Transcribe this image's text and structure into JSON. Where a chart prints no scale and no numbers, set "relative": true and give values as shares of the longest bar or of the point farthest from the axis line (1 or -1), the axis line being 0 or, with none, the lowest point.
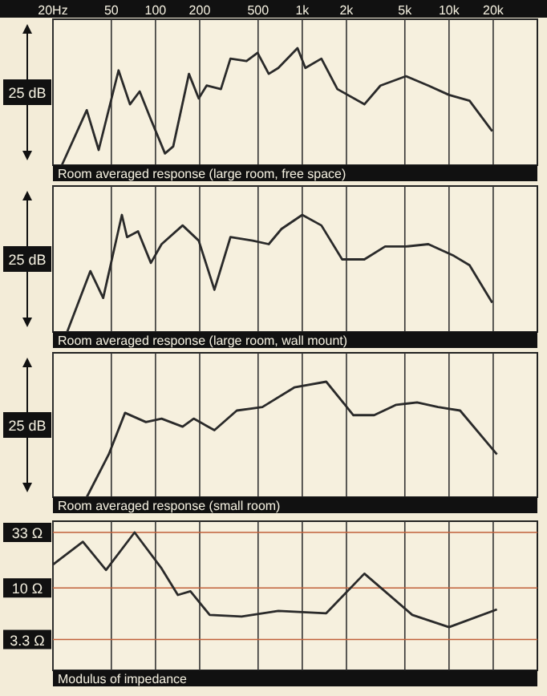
{
  "chart_data": [
    {
      "type": "line",
      "title": "Room averaged response (large room, free space)",
      "annotations": [
        "25 dB"
      ],
      "relative": true,
      "log": "x",
      "xlim": [
        20,
        40000
      ],
      "xticks": [
        {
          "value": 20,
          "label": "20Hz"
        },
        50,
        100,
        200,
        500,
        {
          "value": 1000,
          "label": "1k"
        },
        {
          "value": 2000,
          "label": "2k"
        },
        {
          "value": 5000,
          "label": "5k"
        },
        {
          "value": 10000,
          "label": "10k"
        },
        {
          "value": 20000,
          "label": "20k"
        }
      ],
      "tick_labels": "x",
      "grid": "x",
      "series": [
        {
          "color": "#2a2a2a",
          "x": [
            23,
            34,
            41,
            56,
            67,
            78,
            93,
            116,
            132,
            169,
            197,
            223,
            279,
            324,
            417,
            496,
            591,
            687,
            928,
            1050,
            1350,
            1735,
            2650,
            3410,
            5090,
            7230,
            10000,
            13800,
            19700
          ],
          "values": [
            0,
            0.47,
            0.13,
            0.81,
            0.52,
            0.63,
            0.39,
            0.1,
            0.16,
            0.78,
            0.57,
            0.68,
            0.65,
            0.91,
            0.89,
            0.96,
            0.78,
            0.83,
            1,
            0.83,
            0.91,
            0.65,
            0.52,
            0.68,
            0.76,
            0.68,
            0.6,
            0.55,
            0.29
          ]
        }
      ]
    },
    {
      "type": "line",
      "title": "Room averaged response (large room, wall mount)",
      "annotations": [
        "25 dB"
      ],
      "relative": true,
      "log": "x",
      "xlim": [
        20,
        40000
      ],
      "tick_labels": false,
      "grid": "x",
      "series": [
        {
          "color": "#2a2a2a",
          "x": [
            25,
            36,
            44,
            59,
            64,
            76,
            93,
            110,
            153,
            197,
            252,
            324,
            460,
            591,
            722,
            1000,
            1350,
            1870,
            2650,
            3670,
            5090,
            7230,
            10800,
            13800,
            19700
          ],
          "values": [
            0,
            0.52,
            0.29,
            1,
            0.81,
            0.86,
            0.59,
            0.75,
            0.91,
            0.78,
            0.36,
            0.81,
            0.78,
            0.75,
            0.88,
            1,
            0.91,
            0.62,
            0.62,
            0.73,
            0.73,
            0.75,
            0.65,
            0.57,
            0.25
          ]
        }
      ]
    },
    {
      "type": "line",
      "title": "Room averaged response (small room)",
      "annotations": [
        "25 dB"
      ],
      "relative": true,
      "log": "x",
      "xlim": [
        20,
        40000
      ],
      "tick_labels": false,
      "grid": "x",
      "series": [
        {
          "color": "#2a2a2a",
          "x": [
            34,
            48,
            62,
            86,
            110,
            153,
            182,
            252,
            358,
            535,
            882,
            1456,
            2230,
            3090,
            4370,
            6060,
            8420,
            11900,
            21200
          ],
          "values": [
            0,
            0.37,
            0.73,
            0.65,
            0.68,
            0.61,
            0.68,
            0.58,
            0.75,
            0.78,
            0.95,
            1,
            0.71,
            0.71,
            0.8,
            0.82,
            0.78,
            0.75,
            0.37
          ]
        }
      ]
    },
    {
      "type": "line",
      "title": "Modulus of impedance",
      "log": "xy",
      "xlim": [
        20,
        40000
      ],
      "ylim": [
        1.7,
        42
      ],
      "yticks": [
        {
          "value": 33,
          "label": "33 Ω"
        },
        {
          "value": 10,
          "label": "10 Ω"
        },
        {
          "value": 3.3,
          "label": "3.3 Ω"
        }
      ],
      "tick_labels": "y",
      "grid": true,
      "series": [
        {
          "color": "#2a2a2a",
          "x": [
            20,
            32,
            46,
            72,
            110,
            142,
            173,
            234,
            386,
            687,
            1456,
            2650,
            5620,
            10000,
            21200
          ],
          "values": [
            16.5,
            27,
            14.7,
            33,
            15.2,
            8.6,
            9.3,
            5.6,
            5.4,
            6.1,
            5.8,
            13.6,
            5.6,
            4.3,
            6.3
          ]
        }
      ]
    }
  ]
}
